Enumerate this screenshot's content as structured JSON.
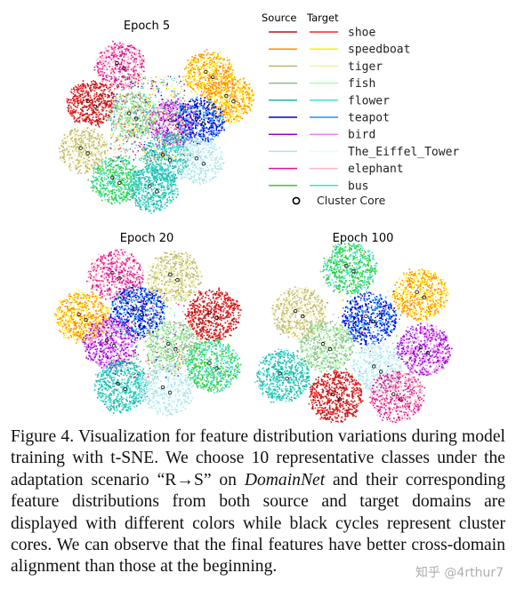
{
  "epochs": [
    {
      "title": "Epoch 5"
    },
    {
      "title": "Epoch 20"
    },
    {
      "title": "Epoch 100"
    }
  ],
  "legend": {
    "source_header": "Source",
    "target_header": "Target",
    "classes": [
      {
        "name": "shoe",
        "source_color": "#b01818",
        "target_color": "#ff2020"
      },
      {
        "name": "speedboat",
        "source_color": "#ff8c00",
        "target_color": "#ffee00"
      },
      {
        "name": "tiger",
        "source_color": "#bdb76b",
        "target_color": "#eeeeaa"
      },
      {
        "name": "fish",
        "source_color": "#8fbc8f",
        "target_color": "#aaffaa"
      },
      {
        "name": "flower",
        "source_color": "#20b2aa",
        "target_color": "#40e0d0"
      },
      {
        "name": "teapot",
        "source_color": "#0000cd",
        "target_color": "#1e90ff"
      },
      {
        "name": "bird",
        "source_color": "#9400d3",
        "target_color": "#ee82ee"
      },
      {
        "name": "The_Eiffel_Tower",
        "source_color": "#b0e0e6",
        "target_color": "#e0ffff"
      },
      {
        "name": "elephant",
        "source_color": "#dc1493",
        "target_color": "#ffb6c1"
      },
      {
        "name": "bus",
        "source_color": "#32cd32",
        "target_color": "#40e0d0"
      }
    ],
    "core_label": "Cluster Core"
  },
  "caption": {
    "part1": "Figure 4. Visualization for feature distribution variations during model training with t-SNE. We choose 10 representative classes under the adaptation scenario “R→S” on ",
    "dataset": "DomainNet",
    "part2": " and their corresponding feature distributions from both source and target domains are displayed with different colors while black cycles represent cluster cores.  We can observe that the final features have better cross-domain alignment than those at the beginning."
  },
  "watermark": "知乎 @4rthur7",
  "scatter": {
    "epoch5": [
      {
        "cls": "elephant",
        "core": [
          0.355,
          0.19
        ]
      },
      {
        "cls": "bird",
        "core": [
          0.64,
          0.52
        ]
      },
      {
        "cls": "speedboat",
        "core": [
          0.83,
          0.24
        ]
      },
      {
        "cls": "speedboat",
        "core": [
          0.94,
          0.38
        ]
      },
      {
        "cls": "shoe",
        "core": [
          0.2,
          0.41
        ]
      },
      {
        "cls": "fish",
        "core": [
          0.42,
          0.48
        ]
      },
      {
        "cls": "tiger",
        "core": [
          0.16,
          0.68
        ]
      },
      {
        "cls": "teapot",
        "core": [
          0.78,
          0.51
        ]
      },
      {
        "cls": "flower",
        "core": [
          0.6,
          0.72
        ]
      },
      {
        "cls": "The_Eiffel_Tower",
        "core": [
          0.78,
          0.74
        ]
      },
      {
        "cls": "bus",
        "core": [
          0.33,
          0.85
        ]
      },
      {
        "cls": "flower",
        "core": [
          0.53,
          0.9
        ]
      }
    ],
    "epoch20": [
      {
        "cls": "elephant",
        "core": [
          0.33,
          0.16
        ]
      },
      {
        "cls": "tiger",
        "core": [
          0.64,
          0.17
        ]
      },
      {
        "cls": "speedboat",
        "core": [
          0.15,
          0.4
        ]
      },
      {
        "cls": "teapot",
        "core": [
          0.45,
          0.37
        ]
      },
      {
        "cls": "shoe",
        "core": [
          0.85,
          0.39
        ]
      },
      {
        "cls": "bird",
        "core": [
          0.3,
          0.55
        ]
      },
      {
        "cls": "fish",
        "core": [
          0.63,
          0.57
        ]
      },
      {
        "cls": "bus",
        "core": [
          0.85,
          0.68
        ]
      },
      {
        "cls": "flower",
        "core": [
          0.36,
          0.8
        ]
      },
      {
        "cls": "The_Eiffel_Tower",
        "core": [
          0.6,
          0.82
        ]
      }
    ],
    "epoch100": [
      {
        "cls": "bus",
        "core": [
          0.42,
          0.12
        ]
      },
      {
        "cls": "speedboat",
        "core": [
          0.78,
          0.27
        ]
      },
      {
        "cls": "tiger",
        "core": [
          0.16,
          0.38
        ]
      },
      {
        "cls": "teapot",
        "core": [
          0.52,
          0.41
        ]
      },
      {
        "cls": "fish",
        "core": [
          0.3,
          0.57
        ]
      },
      {
        "cls": "bird",
        "core": [
          0.8,
          0.59
        ]
      },
      {
        "cls": "flower",
        "core": [
          0.08,
          0.74
        ]
      },
      {
        "cls": "The_Eiffel_Tower",
        "core": [
          0.56,
          0.7
        ]
      },
      {
        "cls": "shoe",
        "core": [
          0.35,
          0.86
        ]
      },
      {
        "cls": "elephant",
        "core": [
          0.66,
          0.86
        ]
      }
    ]
  }
}
